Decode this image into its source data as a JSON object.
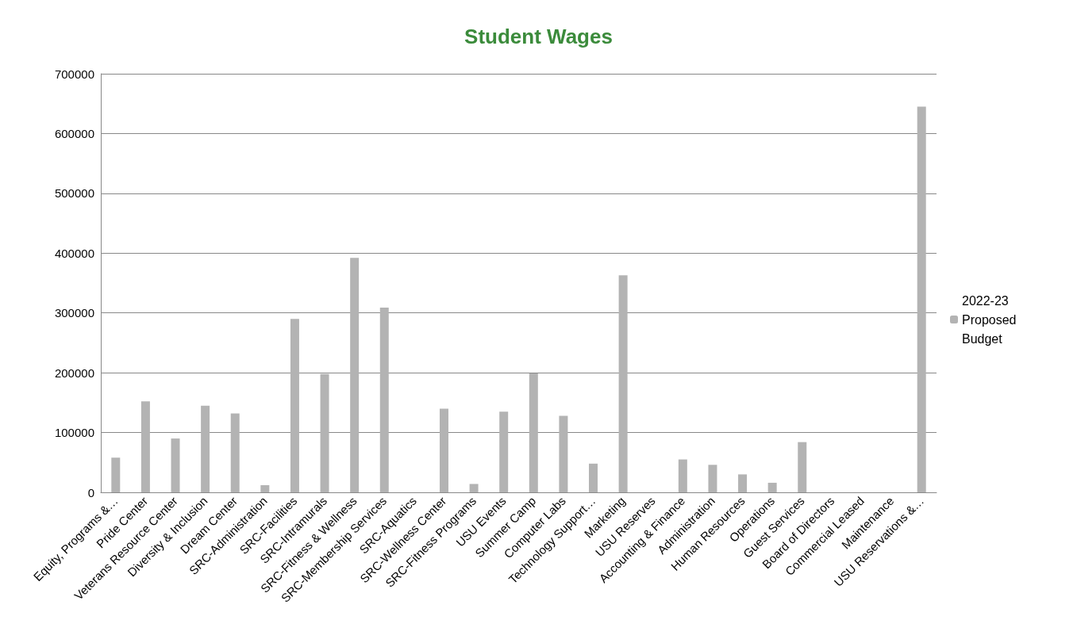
{
  "chart_data": {
    "type": "bar",
    "title": "Student Wages",
    "categories": [
      "Equity, Programs &…",
      "Pride Center",
      "Veterans Resource Center",
      "Diversity & Inclusion",
      "Dream Center",
      "SRC-Administration",
      "SRC-Facilities",
      "SRC-Intramurals",
      "SRC-Fitness & Wellness",
      "SRC-Membership Services",
      "SRC-Aquatics",
      "SRC-Wellness Center",
      "SRC-Fitness Programs",
      "USU Events",
      "Summer Camp",
      "Computer Labs",
      "Technology Support…",
      "Marketing",
      "USU Reserves",
      "Accounting & Finance",
      "Administration",
      "Human Resources",
      "Operations",
      "Guest Services",
      "Board of Directors",
      "Commercial Leased",
      "Maintenance",
      "USU Reservations &…"
    ],
    "series": [
      {
        "name": "2022-23 Proposed Budget",
        "color": "#b3b3b3",
        "values": [
          58000,
          152000,
          90000,
          145000,
          132000,
          12000,
          290000,
          198000,
          392000,
          309000,
          0,
          140000,
          14000,
          135000,
          199000,
          128000,
          48000,
          363000,
          0,
          55000,
          46000,
          30000,
          16000,
          84000,
          0,
          0,
          0,
          645000
        ]
      }
    ],
    "ylim": [
      0,
      700000
    ],
    "yticks": [
      0,
      100000,
      200000,
      300000,
      400000,
      500000,
      600000,
      700000
    ],
    "grid": "y",
    "legend": "right"
  }
}
